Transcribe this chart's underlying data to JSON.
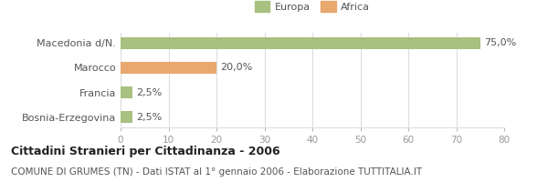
{
  "categories": [
    "Macedonia d/N.",
    "Marocco",
    "Francia",
    "Bosnia-Erzegovina"
  ],
  "values": [
    75.0,
    20.0,
    2.5,
    2.5
  ],
  "colors": [
    "#a8c080",
    "#e8a86e",
    "#a8c080",
    "#a8c080"
  ],
  "labels": [
    "75,0%",
    "20,0%",
    "2,5%",
    "2,5%"
  ],
  "xlim": [
    0,
    80
  ],
  "xticks": [
    0,
    10,
    20,
    30,
    40,
    50,
    60,
    70,
    80
  ],
  "legend_europa_color": "#a8c080",
  "legend_africa_color": "#e8a86e",
  "legend_europa_label": "Europa",
  "legend_africa_label": "Africa",
  "title": "Cittadini Stranieri per Cittadinanza - 2006",
  "subtitle": "COMUNE DI GRUMES (TN) - Dati ISTAT al 1° gennaio 2006 - Elaborazione TUTTITALIA.IT",
  "bg_color": "#ffffff",
  "bar_height": 0.5,
  "label_fontsize": 8,
  "title_fontsize": 9,
  "subtitle_fontsize": 7.5,
  "tick_fontsize": 7.5,
  "ytick_fontsize": 8,
  "text_color": "#555555",
  "grid_color": "#dddddd"
}
